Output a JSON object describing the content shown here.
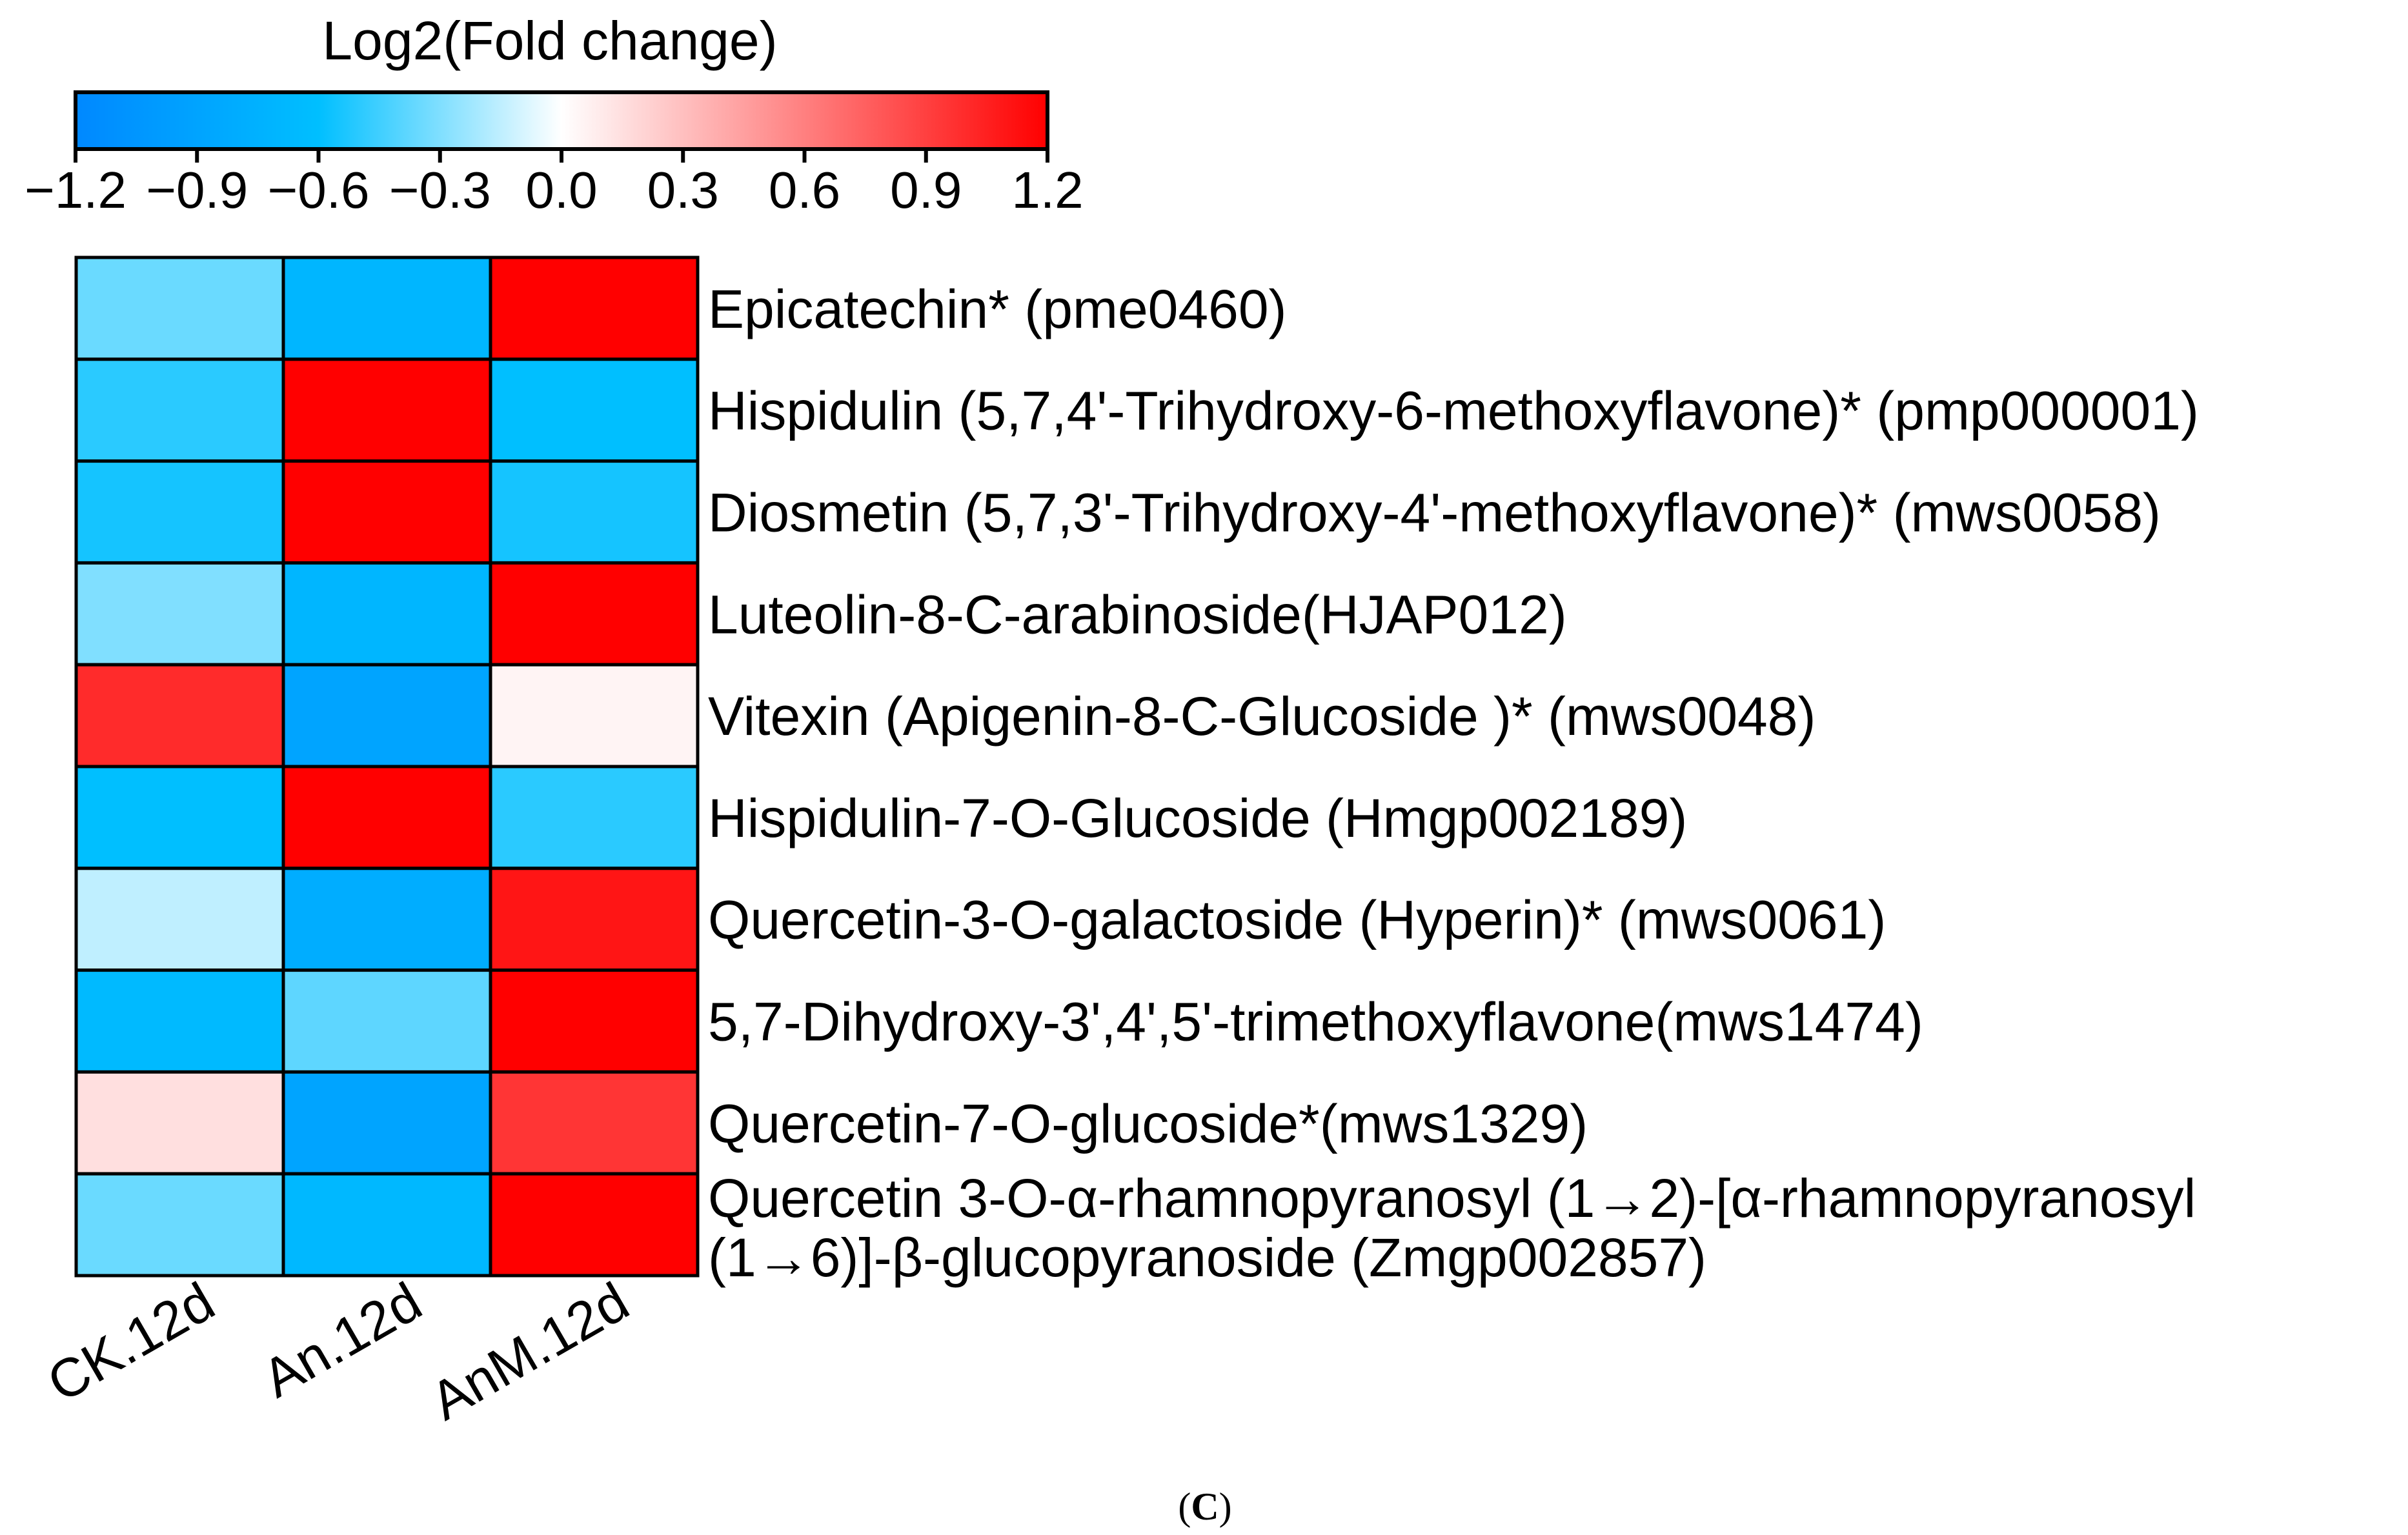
{
  "chart_data": {
    "type": "heatmap",
    "title": "",
    "colorbar": {
      "title": "Log2(Fold change)",
      "range": [
        -1.2,
        1.2
      ],
      "ticks": [
        "−1.2",
        "−0.9",
        "−0.6",
        "−0.3",
        "0.0",
        "0.3",
        "0.6",
        "0.9",
        "1.2"
      ],
      "tick_values": [
        -1.2,
        -0.9,
        -0.6,
        -0.3,
        0.0,
        0.3,
        0.6,
        0.9,
        1.2
      ],
      "colors": [
        {
          "value": -1.2,
          "color": "#0088FF"
        },
        {
          "value": -0.6,
          "color": "#00BFFF"
        },
        {
          "value": 0.0,
          "color": "#FFFFFF"
        },
        {
          "value": 1.2,
          "color": "#FF0000"
        }
      ]
    },
    "columns": [
      "CK.12d",
      "An.12d",
      "AnM.12d"
    ],
    "rows": [
      [
        "Epicatechin* (pme0460)"
      ],
      [
        "Hispidulin (5,7,4'-Trihydroxy-6-methoxyflavone)* (pmp000001)"
      ],
      [
        "Diosmetin (5,7,3'-Trihydroxy-4'-methoxyflavone)* (mws0058)"
      ],
      [
        "Luteolin-8-C-arabinoside(HJAP012)"
      ],
      [
        "Vitexin (Apigenin-8-C-Glucoside )* (mws0048)"
      ],
      [
        "Hispidulin-7-O-Glucoside (Hmgp002189)"
      ],
      [
        "Quercetin-3-O-galactoside (Hyperin)* (mws0061)"
      ],
      [
        "5,7-Dihydroxy-3',4',5'-trimethoxyflavone(mws1474)"
      ],
      [
        "Quercetin-7-O-glucoside*(mws1329)"
      ],
      [
        "Quercetin 3-O-α-rhamnopyranosyl (1→2)-[α-rhamnopyranosyl",
        "(1→6)]-β-glucopyranoside (Zmgp002857)"
      ]
    ],
    "values": [
      [
        -0.35,
        -0.7,
        1.2
      ],
      [
        -0.5,
        1.2,
        -0.6
      ],
      [
        -0.55,
        1.2,
        -0.55
      ],
      [
        -0.3,
        -0.7,
        1.2
      ],
      [
        1.0,
        -0.9,
        0.05
      ],
      [
        -0.6,
        1.2,
        -0.5
      ],
      [
        -0.15,
        -0.8,
        1.1
      ],
      [
        -0.65,
        -0.38,
        1.2
      ],
      [
        0.15,
        -0.9,
        0.95
      ],
      [
        -0.35,
        -0.68,
        1.2
      ]
    ]
  },
  "caption": {
    "open": "(",
    "letter": "C",
    "close": ")"
  }
}
